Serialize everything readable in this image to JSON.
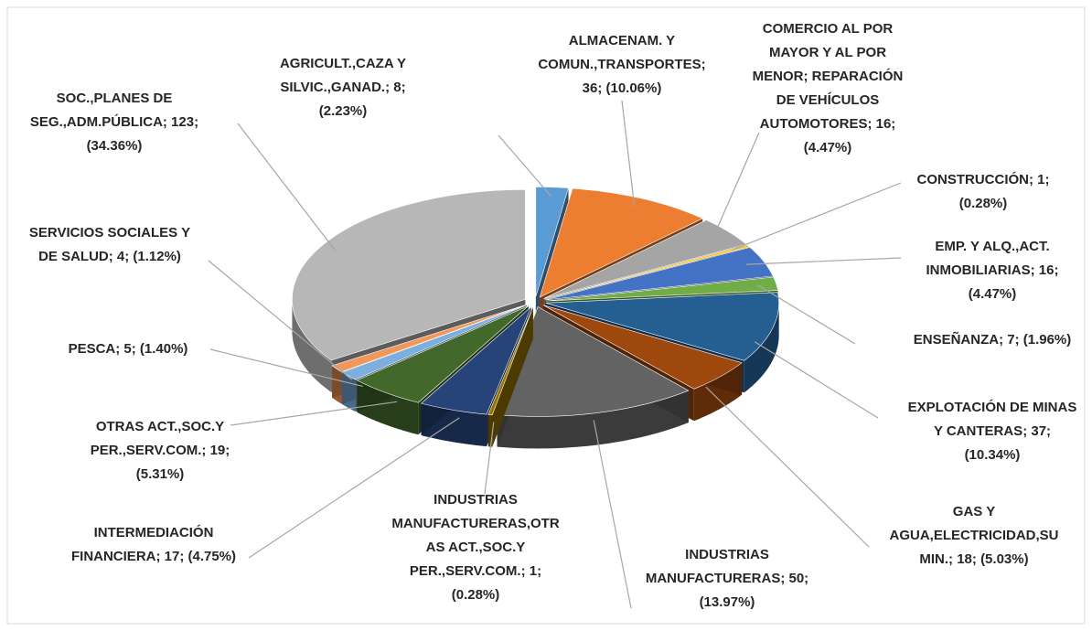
{
  "chart_data": {
    "type": "pie3d",
    "categories": [
      "AGRICULT.,CAZA Y SILVIC.,GANAD.",
      "ALMACENAM. Y COMUN.,TRANSPORTES",
      "COMERCIO AL POR MAYOR Y AL POR MENOR; REPARACIÓN DE VEHÍCULOS AUTOMOTORES",
      "CONSTRUCCIÓN",
      "EMP. Y ALQ.,ACT. INMOBILIARIAS",
      "ENSEÑANZA",
      "EXPLOTACIÓN DE MINAS Y CANTERAS",
      "GAS Y AGUA,ELECTRICIDAD,SUMIN.",
      "INDUSTRIAS MANUFACTURERAS",
      "INDUSTRIAS MANUFACTURERAS,OTRAS ACT.,SOC.Y PER.,SERV.COM.",
      "INTERMEDIACIÓN FINANCIERA",
      "OTRAS ACT.,SOC.Y PER.,SERV.COM.",
      "PESCA",
      "SERVICIOS SOCIALES Y DE SALUD",
      "SOC.,PLANES DE SEG.,ADM.PÚBLICA"
    ],
    "values": [
      8,
      36,
      16,
      1,
      16,
      7,
      37,
      18,
      50,
      1,
      17,
      19,
      5,
      4,
      123
    ],
    "value_labels": [
      [
        "AGRICULT.,CAZA Y",
        "SILVIC.,GANAD.; 8;",
        "(2.23%)"
      ],
      [
        "ALMACENAM. Y",
        "COMUN.,TRANSPORTES;",
        "36; (10.06%)"
      ],
      [
        "COMERCIO AL POR",
        "MAYOR Y AL POR",
        "MENOR; REPARACIÓN",
        "DE VEHÍCULOS",
        "AUTOMOTORES; 16;",
        "(4.47%)"
      ],
      [
        "CONSTRUCCIÓN; 1;",
        "(0.28%)"
      ],
      [
        "EMP. Y ALQ.,ACT.",
        "INMOBILIARIAS; 16;",
        "(4.47%)"
      ],
      [
        "ENSEÑANZA; 7; (1.96%)"
      ],
      [
        "EXPLOTACIÓN DE MINAS",
        "Y CANTERAS; 37;",
        "(10.34%)"
      ],
      [
        "GAS Y",
        "AGUA,ELECTRICIDAD,SU",
        "MIN.; 18; (5.03%)"
      ],
      [
        "INDUSTRIAS",
        "MANUFACTURERAS; 50;",
        "(13.97%)"
      ],
      [
        "INDUSTRIAS",
        "MANUFACTURERAS,OTR",
        "AS ACT.,SOC.Y",
        "PER.,SERV.COM.; 1;",
        "(0.28%)"
      ],
      [
        "INTERMEDIACIÓN",
        "FINANCIERA; 17; (4.75%)"
      ],
      [
        "OTRAS ACT.,SOC.Y",
        "PER.,SERV.COM.; 19;",
        "(5.31%)"
      ],
      [
        "PESCA; 5; (1.40%)"
      ],
      [
        "SERVICIOS SOCIALES Y",
        "DE SALUD; 4; (1.12%)"
      ],
      [
        "SOC.,PLANES DE",
        "SEG.,ADM.PÚBLICA; 123;",
        "(34.36%)"
      ]
    ],
    "colors": [
      "#5b9bd5",
      "#ed7d31",
      "#a5a5a5",
      "#ffc000",
      "#4472c4",
      "#70ad47",
      "#255e91",
      "#9e480e",
      "#636363",
      "#997300",
      "#264478",
      "#43682b",
      "#7cafdd",
      "#f1975a",
      "#b7b7b7"
    ]
  }
}
